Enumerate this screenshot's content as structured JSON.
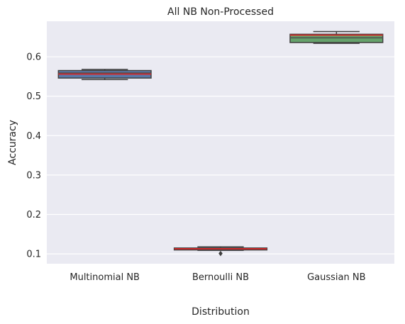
{
  "chart_data": {
    "type": "box",
    "title": "All NB Non-Processed",
    "xlabel": "Distribution",
    "ylabel": "Accuracy",
    "categories": [
      "Multinomial NB",
      "Bernoulli NB",
      "Gaussian NB"
    ],
    "yticks": [
      0.1,
      0.2,
      0.3,
      0.4,
      0.5,
      0.6
    ],
    "ytick_labels": [
      "0.1",
      "0.2",
      "0.3",
      "0.4",
      "0.5",
      "0.6"
    ],
    "ylim": [
      0.075,
      0.69
    ],
    "grid": true,
    "boxes": [
      {
        "name": "Multinomial NB",
        "whisker_low": 0.542,
        "q1": 0.546,
        "median": 0.559,
        "mean": 0.556,
        "q3": 0.565,
        "whisker_high": 0.568,
        "outliers": [],
        "color": "#5a79a8"
      },
      {
        "name": "Bernoulli NB",
        "whisker_low": 0.109,
        "q1": 0.11,
        "median": 0.114,
        "mean": 0.113,
        "q3": 0.115,
        "whisker_high": 0.118,
        "outliers": [
          0.101
        ],
        "color": "#c44e52"
      },
      {
        "name": "Gaussian NB",
        "whisker_low": 0.634,
        "q1": 0.636,
        "median": 0.648,
        "mean": 0.655,
        "q3": 0.657,
        "whisker_high": 0.664,
        "outliers": [],
        "color": "#65a26b"
      }
    ],
    "median_color": "#4c4c4c",
    "mean_color": "#d62728",
    "background_color": "#eaeaf2"
  }
}
